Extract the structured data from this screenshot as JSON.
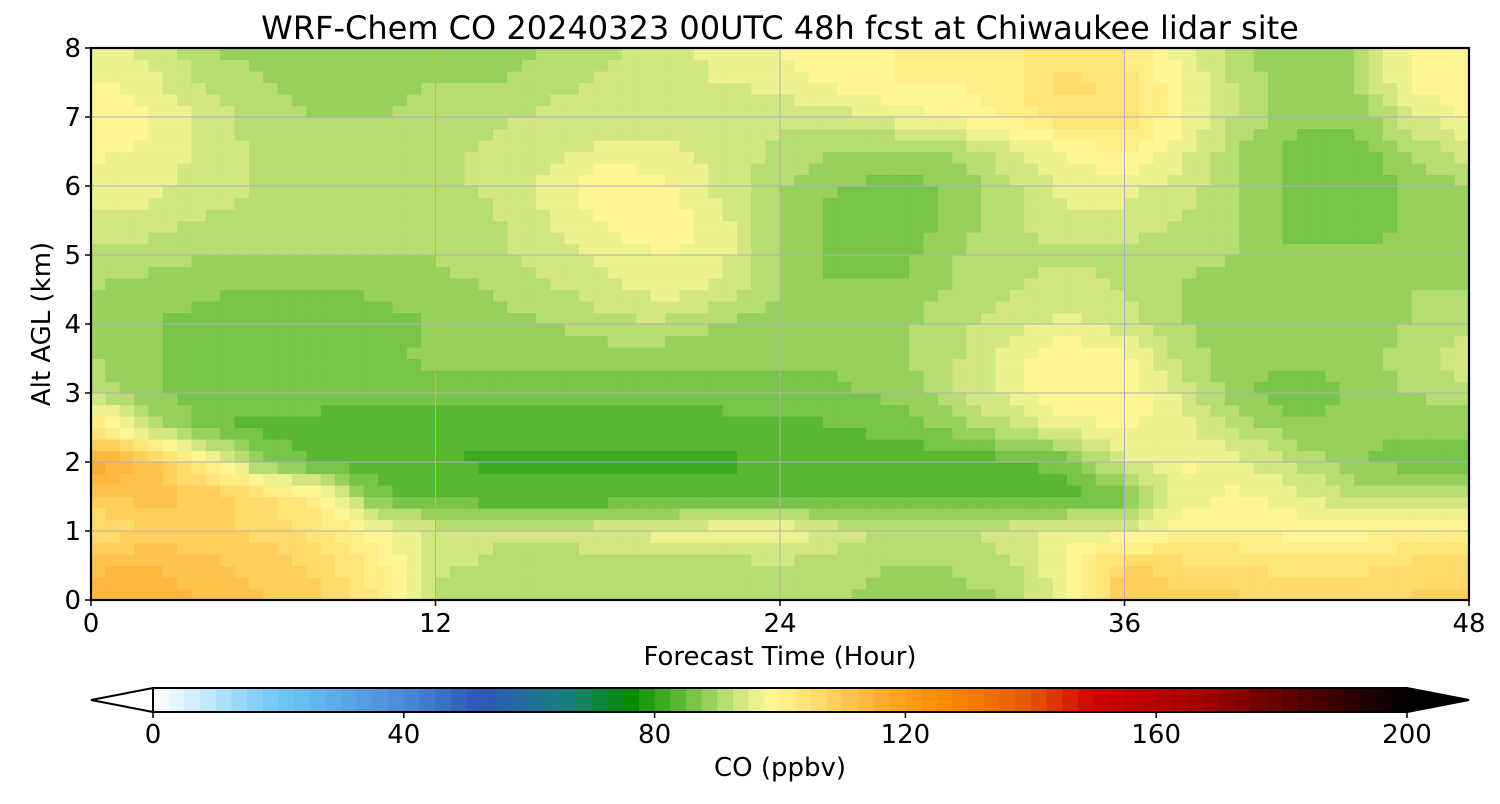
{
  "chart_data": {
    "type": "heatmap",
    "title": "WRF-Chem CO  20240323 00UTC 48h fcst at Chiwaukee lidar site",
    "xlabel": "Forecast Time (Hour)",
    "ylabel": "Alt AGL (km)",
    "xlim": [
      0,
      48
    ],
    "ylim": [
      0,
      8
    ],
    "x_ticks": [
      "0",
      "12",
      "24",
      "36",
      "48"
    ],
    "y_ticks": [
      "0",
      "1",
      "2",
      "3",
      "4",
      "5",
      "6",
      "7",
      "8"
    ],
    "grid": true,
    "x": [
      0,
      2,
      4,
      6,
      8,
      10,
      12,
      14,
      16,
      18,
      20,
      22,
      24,
      26,
      28,
      30,
      32,
      34,
      36,
      38,
      40,
      42,
      44,
      46,
      48
    ],
    "y": [
      0,
      0.5,
      1,
      1.5,
      2,
      2.5,
      3,
      3.5,
      4,
      4.5,
      5,
      5.5,
      6,
      6.5,
      7,
      7.5,
      8
    ],
    "z": [
      [
        114,
        114,
        112,
        110,
        108,
        102,
        92,
        91,
        91,
        91,
        91,
        91,
        91,
        90,
        89,
        89,
        90,
        96,
        110,
        108,
        108,
        106,
        106,
        108,
        108
      ],
      [
        112,
        113,
        111,
        109,
        107,
        101,
        93,
        92,
        91,
        91,
        91,
        91,
        92,
        91,
        90,
        90,
        92,
        98,
        108,
        106,
        105,
        104,
        104,
        106,
        106
      ],
      [
        104,
        108,
        108,
        107,
        104,
        98,
        94,
        93,
        93,
        95,
        96,
        98,
        98,
        94,
        92,
        92,
        94,
        96,
        96,
        100,
        100,
        99,
        99,
        100,
        100
      ],
      [
        110,
        111,
        110,
        106,
        100,
        86,
        84,
        83,
        83,
        83,
        83,
        84,
        84,
        84,
        84,
        85,
        85,
        84,
        86,
        96,
        98,
        96,
        92,
        92,
        92
      ],
      [
        118,
        112,
        100,
        88,
        84,
        83,
        83,
        82,
        82,
        82,
        82,
        82,
        83,
        83,
        83,
        83,
        84,
        86,
        94,
        98,
        96,
        92,
        88,
        86,
        86
      ],
      [
        104,
        92,
        86,
        84,
        84,
        83,
        83,
        83,
        83,
        83,
        83,
        84,
        84,
        85,
        86,
        88,
        92,
        96,
        98,
        96,
        92,
        88,
        88,
        88,
        88
      ],
      [
        92,
        88,
        86,
        86,
        86,
        86,
        86,
        86,
        86,
        86,
        86,
        86,
        86,
        87,
        88,
        92,
        96,
        100,
        100,
        94,
        88,
        86,
        88,
        90,
        92
      ],
      [
        90,
        88,
        86,
        86,
        86,
        87,
        88,
        88,
        88,
        88,
        88,
        88,
        88,
        88,
        89,
        92,
        96,
        100,
        98,
        92,
        88,
        88,
        88,
        92,
        94
      ],
      [
        90,
        88,
        86,
        86,
        85,
        86,
        88,
        89,
        90,
        92,
        92,
        90,
        88,
        88,
        89,
        92,
        94,
        96,
        94,
        90,
        88,
        88,
        88,
        90,
        92
      ],
      [
        90,
        89,
        88,
        87,
        87,
        88,
        89,
        90,
        92,
        94,
        96,
        94,
        90,
        88,
        88,
        90,
        92,
        94,
        92,
        90,
        88,
        88,
        88,
        90,
        90
      ],
      [
        92,
        91,
        90,
        90,
        90,
        90,
        90,
        92,
        94,
        96,
        98,
        96,
        90,
        86,
        86,
        90,
        92,
        92,
        92,
        91,
        90,
        88,
        88,
        88,
        88
      ],
      [
        94,
        94,
        92,
        92,
        91,
        91,
        91,
        92,
        95,
        98,
        99,
        96,
        90,
        86,
        85,
        88,
        92,
        94,
        94,
        92,
        90,
        86,
        86,
        88,
        88
      ],
      [
        96,
        96,
        94,
        92,
        91,
        91,
        92,
        93,
        96,
        100,
        98,
        94,
        90,
        88,
        86,
        88,
        92,
        96,
        96,
        94,
        90,
        86,
        86,
        88,
        90
      ],
      [
        98,
        97,
        94,
        92,
        91,
        91,
        92,
        93,
        94,
        96,
        96,
        94,
        92,
        90,
        89,
        90,
        94,
        98,
        100,
        96,
        90,
        86,
        86,
        90,
        94
      ],
      [
        100,
        98,
        94,
        91,
        90,
        90,
        91,
        92,
        93,
        93,
        93,
        93,
        93,
        94,
        96,
        98,
        100,
        104,
        104,
        98,
        92,
        88,
        88,
        94,
        98
      ],
      [
        98,
        96,
        92,
        90,
        89,
        89,
        90,
        90,
        92,
        93,
        94,
        95,
        96,
        98,
        100,
        100,
        102,
        106,
        104,
        98,
        92,
        88,
        90,
        98,
        100
      ],
      [
        96,
        94,
        90,
        89,
        88,
        88,
        88,
        88,
        90,
        92,
        94,
        96,
        98,
        100,
        100,
        100,
        102,
        104,
        102,
        96,
        90,
        88,
        90,
        98,
        98
      ]
    ],
    "colorbar": {
      "label": "CO  (ppbv)",
      "min": 0,
      "max": 200,
      "ticks": [
        "0",
        "40",
        "80",
        "120",
        "160",
        "200"
      ],
      "extend": "both",
      "colors": [
        {
          "v": 0,
          "c": "#ffffff"
        },
        {
          "v": 20,
          "c": "#6ec8f5"
        },
        {
          "v": 40,
          "c": "#4a8ad8"
        },
        {
          "v": 52,
          "c": "#2f56b8"
        },
        {
          "v": 66,
          "c": "#198080"
        },
        {
          "v": 76,
          "c": "#008c00"
        },
        {
          "v": 84,
          "c": "#5cb836"
        },
        {
          "v": 92,
          "c": "#c0e078"
        },
        {
          "v": 98,
          "c": "#fff898"
        },
        {
          "v": 106,
          "c": "#ffdc6c"
        },
        {
          "v": 116,
          "c": "#ffac30"
        },
        {
          "v": 126,
          "c": "#ff8c00"
        },
        {
          "v": 140,
          "c": "#e45800"
        },
        {
          "v": 150,
          "c": "#d00000"
        },
        {
          "v": 166,
          "c": "#a80000"
        },
        {
          "v": 184,
          "c": "#500000"
        },
        {
          "v": 200,
          "c": "#000000"
        }
      ]
    }
  }
}
